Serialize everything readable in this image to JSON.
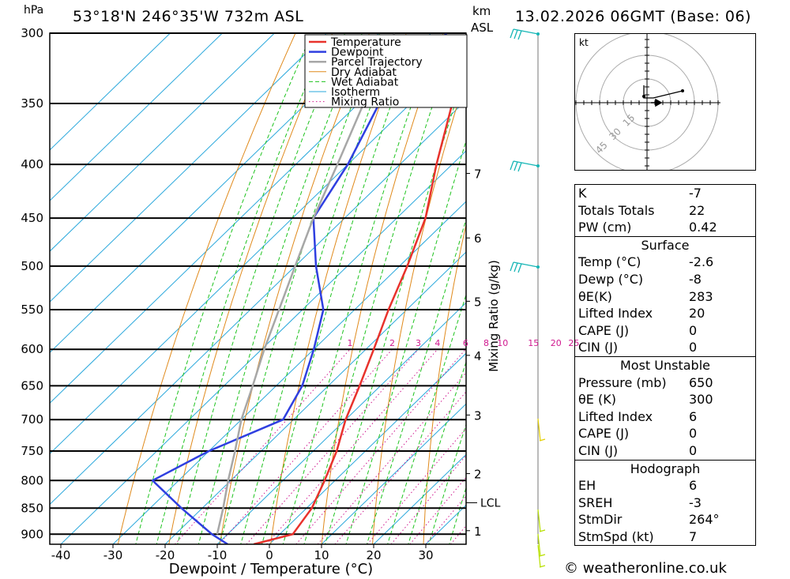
{
  "header": {
    "location": "53°18'N  246°35'W  732m  ASL",
    "datetime": "13.02.2026  06GMT  (Base: 06)",
    "pressure_unit": "hPa",
    "height_unit_line1": "km",
    "height_unit_line2": "ASL"
  },
  "chart_data": {
    "type": "line",
    "title": "Skew-T log-P sounding",
    "xlabel": "Dewpoint / Temperature (°C)",
    "ylabel": "hPa",
    "right_label": "Mixing Ratio (g/kg)",
    "xlim": [
      -45,
      38
    ],
    "ylim": [
      920,
      300
    ],
    "x_ticks": [
      -40,
      -30,
      -20,
      -10,
      0,
      10,
      20,
      30
    ],
    "pressure_levels": [
      300,
      350,
      400,
      450,
      500,
      550,
      600,
      650,
      700,
      750,
      800,
      850,
      900
    ],
    "height_levels": [
      {
        "km": "7",
        "p": 408
      },
      {
        "km": "6",
        "p": 470
      },
      {
        "km": "5",
        "p": 540
      },
      {
        "km": "4",
        "p": 608
      },
      {
        "km": "3",
        "p": 693
      },
      {
        "km": "2",
        "p": 788
      },
      {
        "km": "1",
        "p": 893
      }
    ],
    "lcl": {
      "label": "LCL",
      "p": 840
    },
    "mixing_ratio_labels": [
      1,
      2,
      3,
      4,
      6,
      8,
      10,
      15,
      20,
      25
    ],
    "legend": [
      "Temperature",
      "Dewpoint",
      "Parcel Trajectory",
      "Dry Adiabat",
      "Wet Adiabat",
      "Isotherm",
      "Mixing Ratio"
    ],
    "series": [
      {
        "name": "Temperature",
        "color": "#e8322c",
        "points": [
          [
            920,
            -3
          ],
          [
            900,
            2.5
          ],
          [
            850,
            1
          ],
          [
            800,
            -2
          ],
          [
            750,
            -5.5
          ],
          [
            700,
            -10
          ],
          [
            650,
            -14
          ],
          [
            600,
            -18.5
          ],
          [
            550,
            -23.5
          ],
          [
            500,
            -28.5
          ],
          [
            450,
            -34.5
          ],
          [
            400,
            -43
          ],
          [
            350,
            -52
          ],
          [
            300,
            -61
          ]
        ]
      },
      {
        "name": "Dewpoint",
        "color": "#2f3fe0",
        "points": [
          [
            920,
            -8
          ],
          [
            900,
            -13
          ],
          [
            850,
            -24
          ],
          [
            800,
            -35
          ],
          [
            750,
            -30
          ],
          [
            700,
            -22
          ],
          [
            650,
            -25
          ],
          [
            600,
            -30
          ],
          [
            550,
            -36
          ],
          [
            500,
            -46
          ],
          [
            450,
            -56
          ],
          [
            400,
            -60
          ],
          [
            350,
            -66
          ],
          [
            300,
            -67
          ]
        ]
      },
      {
        "name": "Parcel Trajectory",
        "color": "#a7a7a7",
        "points": [
          [
            900,
            -12
          ],
          [
            850,
            -16
          ],
          [
            800,
            -20.5
          ],
          [
            750,
            -25
          ],
          [
            700,
            -30
          ],
          [
            650,
            -34.5
          ],
          [
            600,
            -39.5
          ],
          [
            550,
            -44.5
          ],
          [
            500,
            -50
          ],
          [
            450,
            -56
          ],
          [
            400,
            -62
          ],
          [
            350,
            -69
          ],
          [
            300,
            -77
          ]
        ]
      }
    ]
  },
  "hodograph": {
    "unit": "kt",
    "ring_labels": [
      "15",
      "30",
      "45"
    ]
  },
  "indices": {
    "top": [
      {
        "label": "K",
        "value": "-7"
      },
      {
        "label": "Totals Totals",
        "value": "22"
      },
      {
        "label": "PW (cm)",
        "value": "0.42"
      }
    ],
    "surface_title": "Surface",
    "surface": [
      {
        "label": "Temp (°C)",
        "value": "-2.6"
      },
      {
        "label": "Dewp (°C)",
        "value": "-8"
      },
      {
        "label": "θE(K)",
        "value": "283"
      },
      {
        "label": "Lifted Index",
        "value": "20"
      },
      {
        "label": "CAPE (J)",
        "value": "0"
      },
      {
        "label": "CIN (J)",
        "value": "0"
      }
    ],
    "mu_title": "Most Unstable",
    "mu": [
      {
        "label": "Pressure (mb)",
        "value": "650"
      },
      {
        "label": "θE (K)",
        "value": "300"
      },
      {
        "label": "Lifted Index",
        "value": "6"
      },
      {
        "label": "CAPE (J)",
        "value": "0"
      },
      {
        "label": "CIN (J)",
        "value": "0"
      }
    ],
    "hodo_title": "Hodograph",
    "hodo": [
      {
        "label": "EH",
        "value": "6"
      },
      {
        "label": "SREH",
        "value": "-3"
      },
      {
        "label": "StmDir",
        "value": "264°"
      },
      {
        "label": "StmSpd (kt)",
        "value": "7"
      }
    ]
  },
  "footer": {
    "copyright": "© weatheronline.co.uk"
  }
}
